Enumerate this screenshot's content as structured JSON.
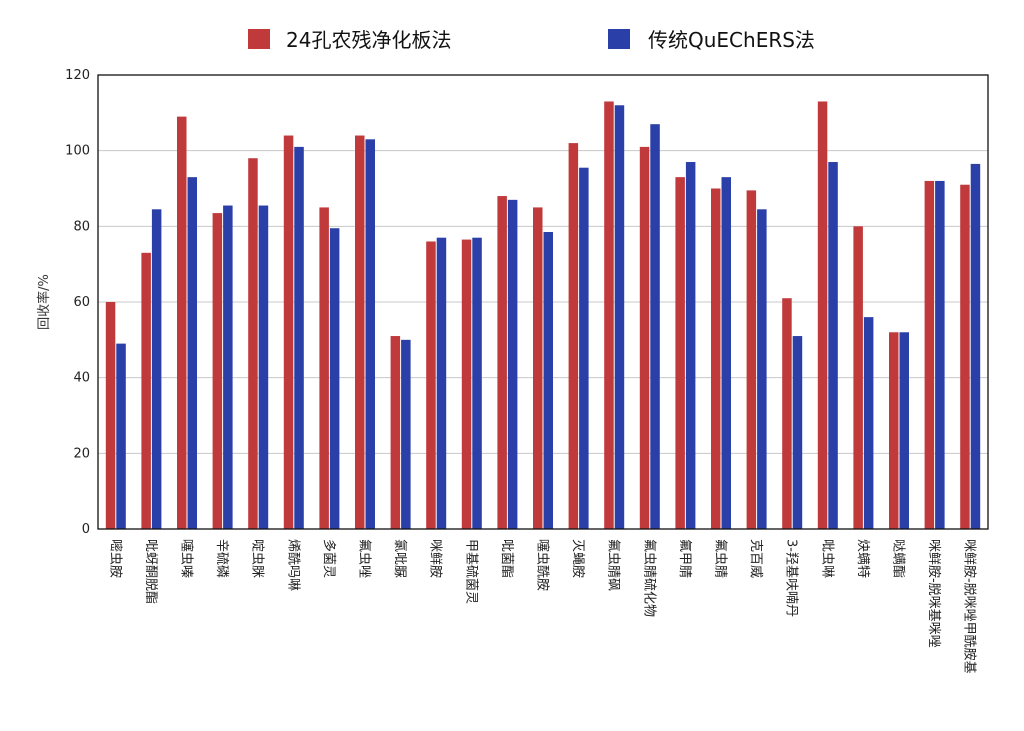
{
  "chart_data": {
    "type": "bar",
    "ylabel": "回收率/%",
    "ylim": [
      0,
      120
    ],
    "yticks": [
      0,
      20,
      40,
      60,
      80,
      100,
      120
    ],
    "grid": true,
    "legend_position": "top",
    "categories": [
      "嘧虫胺",
      "吡蚜酮脱酯",
      "噻虫嗪",
      "辛硫磷",
      "啶虫脒",
      "烯酰吗啉",
      "多菌灵",
      "氟虫唑",
      "氯吡脲",
      "咪鲜胺",
      "甲基硫菌灵",
      "吡菌酯",
      "噻虫酰胺",
      "灭蝇胺",
      "氟虫腈砜",
      "氟虫腈硫化物",
      "氟甲腈",
      "氟虫腈",
      "克百威",
      "3-羟基呋喃丹",
      "吡虫啉",
      "炔螨特",
      "哒螨酯",
      "咪鲜胺-脱咪基咪唑",
      "咪鲜胺-脱咪唑甲酰胺基"
    ],
    "series": [
      {
        "name": "24孔农残净化板法",
        "color": "#c0393b",
        "values": [
          60,
          73,
          109,
          83.5,
          98,
          104,
          85,
          104,
          51,
          76,
          76.5,
          88,
          85,
          102,
          113,
          101,
          93,
          90,
          89.5,
          61,
          113,
          80,
          52,
          92,
          91
        ]
      },
      {
        "name": "传统QuEChERS法",
        "color": "#2b3fa8",
        "values": [
          49,
          84.5,
          93,
          85.5,
          85.5,
          101,
          79.5,
          103,
          50,
          77,
          77,
          87,
          78.5,
          95.5,
          112,
          107,
          97,
          93,
          84.5,
          51,
          97,
          56,
          52,
          92,
          96.5
        ]
      }
    ]
  }
}
